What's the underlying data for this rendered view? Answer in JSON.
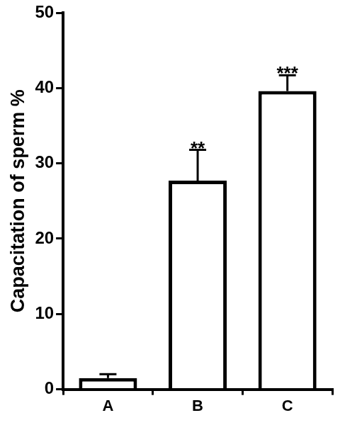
{
  "chart_data": {
    "type": "bar",
    "y_label": "Capacitation of sperm %",
    "categories": [
      "A",
      "B",
      "C"
    ],
    "values": [
      1.5,
      27.7,
      39.6
    ],
    "errors": [
      0.5,
      4.1,
      2.1
    ],
    "annotations": [
      null,
      "**",
      "***"
    ],
    "color": "#ffffff",
    "ylim": [
      0,
      50
    ],
    "yticks": [
      0,
      10,
      20,
      30,
      40,
      50
    ],
    "grid": false
  }
}
